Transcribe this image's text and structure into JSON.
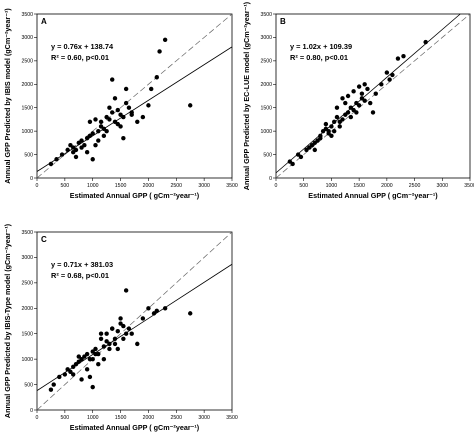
{
  "chart_data": [
    {
      "type": "scatter",
      "panel_label": "A",
      "ylabel": "Annual GPP Predicted by IBIS model (gCm⁻²year⁻¹)",
      "xlabel": "Estimated Annual GPP ( gCm⁻²year⁻¹)",
      "equation": "y = 0.76x + 138.74",
      "stats": "R² = 0.60, p<0.01",
      "fit": {
        "slope": 0.76,
        "intercept": 138.74
      },
      "xlim": [
        0,
        3500
      ],
      "ylim": [
        0,
        3500
      ],
      "ticks": [
        0,
        500,
        1000,
        1500,
        2000,
        2500,
        3000,
        3500
      ],
      "x": [
        250,
        350,
        450,
        550,
        600,
        650,
        700,
        750,
        800,
        850,
        900,
        950,
        1000,
        1050,
        1100,
        1150,
        1200,
        1250,
        1300,
        1350,
        1400,
        1450,
        1500,
        1550,
        1600,
        1650,
        1700,
        1800,
        1900,
        2000,
        2050,
        2150,
        2200,
        2300,
        2750,
        700,
        900,
        1000,
        1100,
        1200,
        1300,
        1400,
        1500,
        1600,
        1700,
        1050,
        1150,
        1250,
        1350,
        650,
        800,
        950,
        1450,
        1550
      ],
      "y": [
        300,
        400,
        500,
        600,
        700,
        650,
        600,
        750,
        800,
        700,
        850,
        900,
        950,
        700,
        1000,
        1100,
        1050,
        1300,
        1250,
        1400,
        1200,
        1150,
        1350,
        1300,
        1600,
        1500,
        1400,
        1200,
        1300,
        1550,
        1900,
        2150,
        2700,
        2950,
        1550,
        450,
        550,
        400,
        800,
        900,
        1500,
        1700,
        1100,
        1900,
        1350,
        1250,
        1200,
        1000,
        2100,
        550,
        650,
        1200,
        1450,
        850
      ]
    },
    {
      "type": "scatter",
      "panel_label": "B",
      "ylabel": "Annual GPP Predicted by EC-LUE model (gCm⁻²year⁻¹)",
      "xlabel": "Estimated Annual GPP ( gCm⁻²year⁻¹)",
      "equation": "y = 1.02x + 109.39",
      "stats": "R² = 0.80, p<0.01",
      "fit": {
        "slope": 1.02,
        "intercept": 109.39
      },
      "xlim": [
        0,
        3500
      ],
      "ylim": [
        0,
        3500
      ],
      "ticks": [
        0,
        500,
        1000,
        1500,
        2000,
        2500,
        3000,
        3500
      ],
      "x": [
        250,
        300,
        400,
        450,
        550,
        600,
        650,
        700,
        750,
        800,
        850,
        900,
        950,
        1000,
        1050,
        1100,
        1150,
        1200,
        1250,
        1300,
        1350,
        1400,
        1450,
        1500,
        1550,
        1600,
        1650,
        1700,
        1750,
        1800,
        1900,
        2000,
        2050,
        2100,
        2200,
        2300,
        2700,
        900,
        1000,
        1100,
        1200,
        1300,
        1400,
        1500,
        1600,
        700,
        800,
        1150,
        1250,
        1350,
        1450,
        1550,
        1050,
        950
      ],
      "y": [
        350,
        300,
        500,
        450,
        600,
        650,
        700,
        750,
        800,
        900,
        1000,
        1050,
        1000,
        1100,
        1200,
        1300,
        1200,
        1250,
        1350,
        1400,
        1500,
        1450,
        1600,
        1550,
        1700,
        1650,
        1900,
        1600,
        1400,
        1800,
        2000,
        2250,
        2100,
        2200,
        2550,
        2600,
        2900,
        1150,
        900,
        1500,
        1700,
        1750,
        1850,
        1950,
        2000,
        600,
        850,
        1100,
        1600,
        1300,
        1400,
        1800,
        1000,
        950
      ]
    },
    {
      "type": "scatter",
      "panel_label": "C",
      "ylabel": "Annual GPP Predicted by IBIS-Type model (gCm⁻²year⁻¹)",
      "xlabel": "Estimated Annual GPP ( gCm⁻²year⁻¹)",
      "equation": "y = 0.71x + 381.03",
      "stats": "R² = 0.68, p<0.01",
      "fit": {
        "slope": 0.71,
        "intercept": 381.03
      },
      "xlim": [
        0,
        3500
      ],
      "ylim": [
        0,
        3500
      ],
      "ticks": [
        0,
        500,
        1000,
        1500,
        2000,
        2500,
        3000,
        3500
      ],
      "x": [
        250,
        300,
        400,
        500,
        550,
        600,
        650,
        700,
        750,
        800,
        850,
        900,
        950,
        1000,
        1050,
        1100,
        1150,
        1200,
        1250,
        1300,
        1350,
        1400,
        1450,
        1500,
        1550,
        1600,
        1650,
        1700,
        1800,
        1900,
        2000,
        2100,
        2150,
        2300,
        2750,
        800,
        900,
        1000,
        1100,
        1200,
        1300,
        1400,
        1500,
        1600,
        650,
        750,
        950,
        1050,
        1150,
        1250,
        1350,
        1450,
        1550,
        1000
      ],
      "y": [
        400,
        500,
        650,
        700,
        800,
        750,
        850,
        900,
        950,
        1000,
        1050,
        1100,
        1000,
        1150,
        1200,
        1100,
        1400,
        1250,
        1500,
        1300,
        1600,
        1400,
        1550,
        1700,
        1650,
        2350,
        1600,
        1500,
        1300,
        1800,
        2000,
        1900,
        1950,
        2000,
        1900,
        600,
        800,
        450,
        900,
        1000,
        1200,
        1300,
        1800,
        1500,
        700,
        1050,
        650,
        1100,
        1500,
        1350,
        1600,
        1200,
        1400,
        1000
      ]
    }
  ]
}
